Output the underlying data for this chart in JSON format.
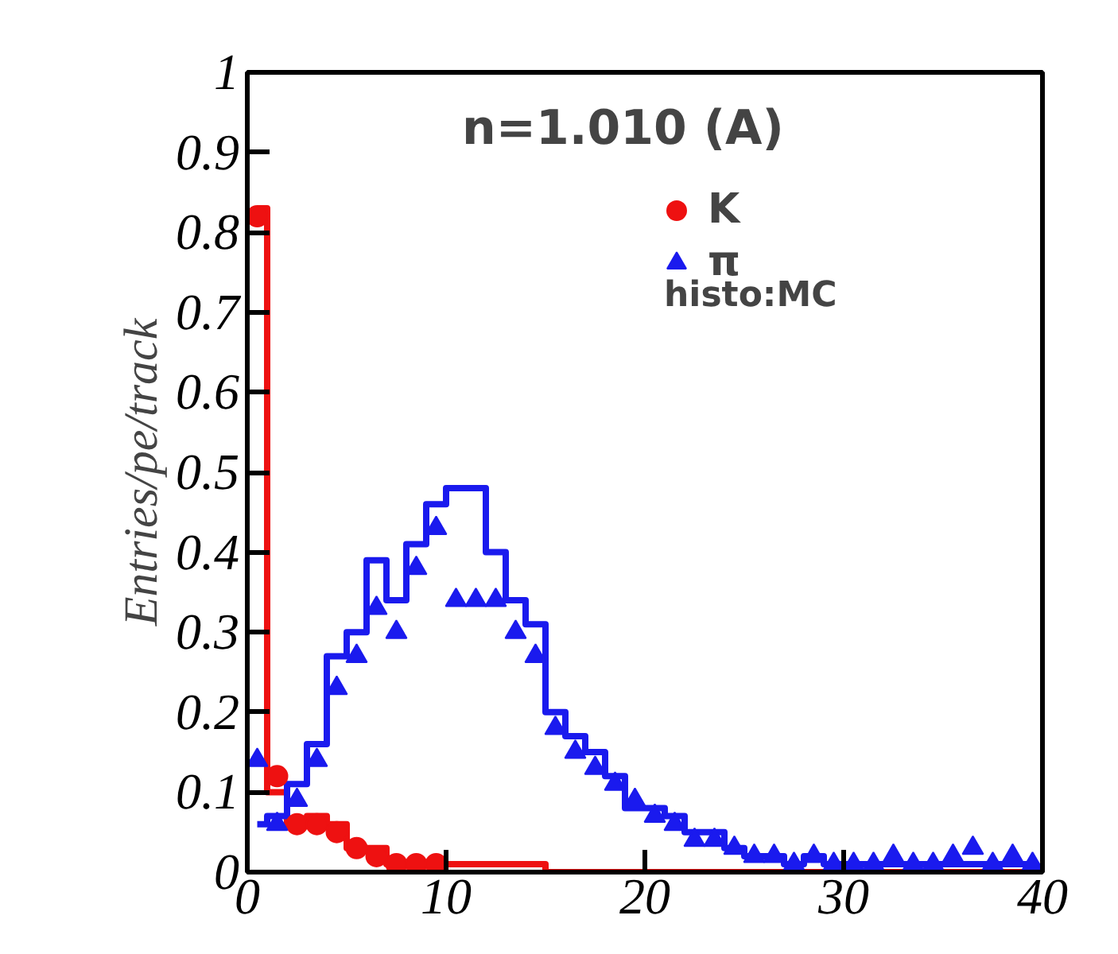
{
  "chart_data": {
    "type": "step",
    "ylabel": "Entries/pe/track",
    "annotations": [
      "n=1.010 (A)",
      "histo:MC"
    ],
    "xlim": [
      0,
      40
    ],
    "ylim": [
      0,
      1
    ],
    "xticks": [
      0,
      10,
      20,
      30,
      40
    ],
    "yticks": [
      0,
      0.1,
      0.2,
      0.3,
      0.4,
      0.5,
      0.6,
      0.7,
      0.8,
      0.9,
      1
    ],
    "grid": false,
    "legend": "top right",
    "series": [
      {
        "color": "#ee1111",
        "x": [
          0.5,
          1.5,
          2.5,
          3.5,
          4.5,
          5.5,
          6.5,
          7.5,
          8.5,
          9.5,
          10.5,
          11.5,
          12.5,
          13.5,
          14.5,
          15.5,
          16.5,
          17.5,
          18.5,
          19.5,
          20.5,
          21.5,
          22.5,
          23.5,
          24.5,
          25.5,
          26.5,
          27.5,
          28.5,
          29.5,
          30.5,
          31.5,
          32.5,
          33.5,
          34.5,
          35.5,
          36.5,
          37.5,
          38.5,
          39.5
        ],
        "values": [
          0.83,
          0.1,
          0.06,
          0.07,
          0.06,
          0.03,
          0.03,
          0.01,
          0.01,
          0.01,
          0.01,
          0.01,
          0.01,
          0.01,
          0.01,
          0,
          0,
          0,
          0,
          0,
          0,
          0,
          0,
          0,
          0,
          0,
          0,
          0,
          0,
          0,
          0,
          0,
          0,
          0,
          0,
          0,
          0,
          0,
          0,
          0
        ]
      },
      {
        "color": "#1a1aee",
        "x": [
          0.5,
          1.5,
          2.5,
          3.5,
          4.5,
          5.5,
          6.5,
          7.5,
          8.5,
          9.5,
          10.5,
          11.5,
          12.5,
          13.5,
          14.5,
          15.5,
          16.5,
          17.5,
          18.5,
          19.5,
          20.5,
          21.5,
          22.5,
          23.5,
          24.5,
          25.5,
          26.5,
          27.5,
          28.5,
          29.5,
          30.5,
          31.5,
          32.5,
          33.5,
          34.5,
          35.5,
          36.5,
          37.5,
          38.5,
          39.5
        ],
        "values": [
          0.06,
          0.07,
          0.11,
          0.16,
          0.27,
          0.3,
          0.39,
          0.34,
          0.41,
          0.46,
          0.48,
          0.48,
          0.4,
          0.34,
          0.31,
          0.2,
          0.17,
          0.15,
          0.12,
          0.08,
          0.08,
          0.07,
          0.05,
          0.05,
          0.03,
          0.02,
          0.02,
          0.01,
          0.02,
          0.01,
          0.01,
          0.01,
          0.01,
          0.01,
          0.01,
          0.01,
          0.01,
          0.01,
          0.01,
          0.01
        ]
      },
      {
        "type": "scatter",
        "name": "K",
        "marker": "circle",
        "color": "#ee1111",
        "x": [
          0.5,
          1.5,
          2.5,
          3.5,
          4.5,
          5.5,
          6.5,
          7.5,
          8.5,
          9.5
        ],
        "values": [
          0.82,
          0.12,
          0.06,
          0.06,
          0.05,
          0.03,
          0.02,
          0.01,
          0.01,
          0.01
        ]
      },
      {
        "type": "scatter",
        "name": "π",
        "marker": "triangle",
        "color": "#1a1aee",
        "x": [
          0.5,
          1.5,
          2.5,
          3.5,
          4.5,
          5.5,
          6.5,
          7.5,
          8.5,
          9.5,
          10.5,
          11.5,
          12.5,
          13.5,
          14.5,
          15.5,
          16.5,
          17.5,
          18.5,
          19.5,
          20.5,
          21.5,
          22.5,
          23.5,
          24.5,
          25.5,
          26.5,
          27.5,
          28.5,
          29.5,
          30.5,
          31.5,
          32.5,
          33.5,
          34.5,
          35.5,
          36.5,
          37.5,
          38.5,
          39.5
        ],
        "values": [
          0.14,
          0.06,
          0.09,
          0.14,
          0.23,
          0.27,
          0.33,
          0.3,
          0.38,
          0.43,
          0.34,
          0.34,
          0.34,
          0.3,
          0.27,
          0.18,
          0.15,
          0.13,
          0.11,
          0.09,
          0.07,
          0.06,
          0.04,
          0.04,
          0.03,
          0.02,
          0.02,
          0.01,
          0.02,
          0.01,
          0.01,
          0.01,
          0.02,
          0.01,
          0.01,
          0.02,
          0.03,
          0.01,
          0.02,
          0.01
        ]
      }
    ]
  }
}
